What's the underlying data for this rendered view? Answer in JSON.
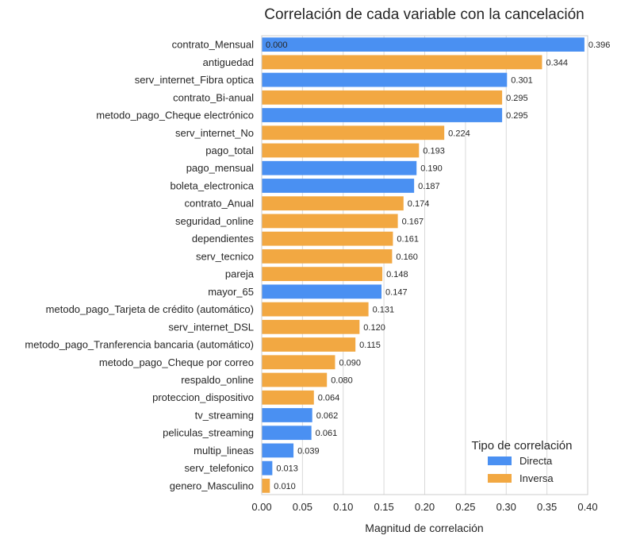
{
  "colors": {
    "Directa": "#4a90f2",
    "Inversa": "#f2a842",
    "grid": "#d9d9d9",
    "frame": "#cccccc"
  },
  "chart_data": {
    "type": "bar",
    "orientation": "horizontal",
    "title": "Correlación de cada variable con la cancelación",
    "xlabel": "Magnitud de correlación",
    "ylabel": "",
    "xlim": [
      0,
      0.4
    ],
    "xticks": [
      "0.00",
      "0.05",
      "0.10",
      "0.15",
      "0.20",
      "0.25",
      "0.30",
      "0.35",
      "0.40"
    ],
    "grid": "vertical",
    "legend": {
      "title": "Tipo de correlación",
      "placement": "bottom-right",
      "entries": [
        "Directa",
        "Inversa"
      ]
    },
    "extra_annotation": "0.000",
    "bars": [
      {
        "category": "contrato_Mensual",
        "value": 0.396,
        "label": "0.396",
        "type": "Directa"
      },
      {
        "category": "antiguedad",
        "value": 0.344,
        "label": "0.344",
        "type": "Inversa"
      },
      {
        "category": "serv_internet_Fibra optica",
        "value": 0.301,
        "label": "0.301",
        "type": "Directa"
      },
      {
        "category": "contrato_Bi-anual",
        "value": 0.295,
        "label": "0.295",
        "type": "Inversa"
      },
      {
        "category": "metodo_pago_Cheque electrónico",
        "value": 0.295,
        "label": "0.295",
        "type": "Directa"
      },
      {
        "category": "serv_internet_No",
        "value": 0.224,
        "label": "0.224",
        "type": "Inversa"
      },
      {
        "category": "pago_total",
        "value": 0.193,
        "label": "0.193",
        "type": "Inversa"
      },
      {
        "category": "pago_mensual",
        "value": 0.19,
        "label": "0.190",
        "type": "Directa"
      },
      {
        "category": "boleta_electronica",
        "value": 0.187,
        "label": "0.187",
        "type": "Directa"
      },
      {
        "category": "contrato_Anual",
        "value": 0.174,
        "label": "0.174",
        "type": "Inversa"
      },
      {
        "category": "seguridad_online",
        "value": 0.167,
        "label": "0.167",
        "type": "Inversa"
      },
      {
        "category": "dependientes",
        "value": 0.161,
        "label": "0.161",
        "type": "Inversa"
      },
      {
        "category": "serv_tecnico",
        "value": 0.16,
        "label": "0.160",
        "type": "Inversa"
      },
      {
        "category": "pareja",
        "value": 0.148,
        "label": "0.148",
        "type": "Inversa"
      },
      {
        "category": "mayor_65",
        "value": 0.147,
        "label": "0.147",
        "type": "Directa"
      },
      {
        "category": "metodo_pago_Tarjeta de crédito (automático)",
        "value": 0.131,
        "label": "0.131",
        "type": "Inversa"
      },
      {
        "category": "serv_internet_DSL",
        "value": 0.12,
        "label": "0.120",
        "type": "Inversa"
      },
      {
        "category": "metodo_pago_Tranferencia bancaria (automático)",
        "value": 0.115,
        "label": "0.115",
        "type": "Inversa"
      },
      {
        "category": "metodo_pago_Cheque por correo",
        "value": 0.09,
        "label": "0.090",
        "type": "Inversa"
      },
      {
        "category": "respaldo_online",
        "value": 0.08,
        "label": "0.080",
        "type": "Inversa"
      },
      {
        "category": "proteccion_dispositivo",
        "value": 0.064,
        "label": "0.064",
        "type": "Inversa"
      },
      {
        "category": "tv_streaming",
        "value": 0.062,
        "label": "0.062",
        "type": "Directa"
      },
      {
        "category": "peliculas_streaming",
        "value": 0.061,
        "label": "0.061",
        "type": "Directa"
      },
      {
        "category": "multip_lineas",
        "value": 0.039,
        "label": "0.039",
        "type": "Directa"
      },
      {
        "category": "serv_telefonico",
        "value": 0.013,
        "label": "0.013",
        "type": "Directa"
      },
      {
        "category": "genero_Masculino",
        "value": 0.01,
        "label": "0.010",
        "type": "Inversa"
      }
    ]
  }
}
